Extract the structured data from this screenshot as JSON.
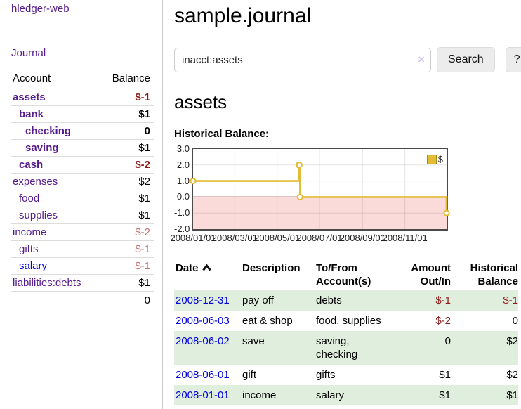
{
  "colors": {
    "negative": "#8f1a1a",
    "negative_muted": "#c47272",
    "link_visited": "#551a8b",
    "link_unvisited": "#0000dd",
    "row_highlight": "#dfeedd",
    "accent_gold": "#e3bc35"
  },
  "app": {
    "brand": "hledger-web"
  },
  "sidebar": {
    "journal_link": "Journal",
    "accounts_table": {
      "account_header": "Account",
      "balance_header": "Balance",
      "rows": [
        {
          "name": "assets",
          "depth": 1,
          "balance": "$-1",
          "selected": true,
          "visited": true
        },
        {
          "name": "bank",
          "depth": 2,
          "balance": "$1",
          "selected": true,
          "visited": true
        },
        {
          "name": "checking",
          "depth": 3,
          "balance": "0",
          "selected": true,
          "visited": true
        },
        {
          "name": "saving",
          "depth": 3,
          "balance": "$1",
          "selected": true,
          "visited": true
        },
        {
          "name": "cash",
          "depth": 2,
          "balance": "$-2",
          "selected": true,
          "visited": true
        },
        {
          "name": "expenses",
          "depth": 1,
          "balance": "$2",
          "selected": false,
          "visited": true
        },
        {
          "name": "food",
          "depth": 2,
          "balance": "$1",
          "selected": false,
          "visited": true
        },
        {
          "name": "supplies",
          "depth": 2,
          "balance": "$1",
          "selected": false,
          "visited": true
        },
        {
          "name": "income",
          "depth": 1,
          "balance": "$-2",
          "selected": false,
          "visited": true
        },
        {
          "name": "gifts",
          "depth": 2,
          "balance": "$-1",
          "selected": false,
          "visited": true
        },
        {
          "name": "salary",
          "depth": 2,
          "balance": "$-1",
          "selected": false,
          "visited": false
        },
        {
          "name": "liabilities:debts",
          "depth": 1,
          "balance": "$1",
          "selected": false,
          "visited": true
        }
      ],
      "total": "0"
    }
  },
  "header": {
    "title": "sample.journal"
  },
  "search": {
    "value": "inacct:assets",
    "clear_icon": "×",
    "button_label": "Search",
    "help_label": "?"
  },
  "account_page": {
    "heading": "assets",
    "chart_title": "Historical Balance:"
  },
  "chart_data": {
    "type": "line",
    "step": true,
    "title": "Historical Balance",
    "legend": "$",
    "legend_position": "top-right",
    "grid": true,
    "x_range": [
      "2008/01/01",
      "2008/12/31"
    ],
    "ylim": [
      -2,
      3
    ],
    "y_ticks": [
      3.0,
      2.0,
      1.0,
      0.0,
      -1.0,
      -2.0
    ],
    "x_ticks": [
      "2008/01/01",
      "2008/03/01",
      "2008/05/01",
      "2008/07/01",
      "2008/09/01",
      "2008/11/01"
    ],
    "series": [
      {
        "name": "$",
        "points": [
          [
            "2008/01/01",
            1
          ],
          [
            "2008/06/01",
            2
          ],
          [
            "2008/06/02",
            2
          ],
          [
            "2008/06/03",
            0
          ],
          [
            "2008/12/31",
            -1
          ]
        ]
      }
    ],
    "colors": {
      "line": "#e3bc35",
      "marker_fill": "#ffffff",
      "negative_region": "#fbdada",
      "zero_line": "#7d0e0e",
      "gridline": "rgba(0,0,0,0.1)",
      "border": "#4a4a4a"
    }
  },
  "register": {
    "headers": {
      "date": "Date",
      "date_sort": "ascending",
      "description": "Description",
      "account": "To/From Account(s)",
      "amount": "Amount Out/In",
      "balance": "Historical Balance"
    },
    "rows": [
      {
        "date": "2008-12-31",
        "description": "pay off",
        "accounts": "debts",
        "amount": "$-1",
        "balance": "$-1"
      },
      {
        "date": "2008-06-03",
        "description": "eat & shop",
        "accounts": "food, supplies",
        "amount": "$-2",
        "balance": "0"
      },
      {
        "date": "2008-06-02",
        "description": "save",
        "accounts": "saving, checking",
        "amount": "0",
        "balance": "$2"
      },
      {
        "date": "2008-06-01",
        "description": "gift",
        "accounts": "gifts",
        "amount": "$1",
        "balance": "$2"
      },
      {
        "date": "2008-01-01",
        "description": "income",
        "accounts": "salary",
        "amount": "$1",
        "balance": "$1"
      }
    ]
  }
}
